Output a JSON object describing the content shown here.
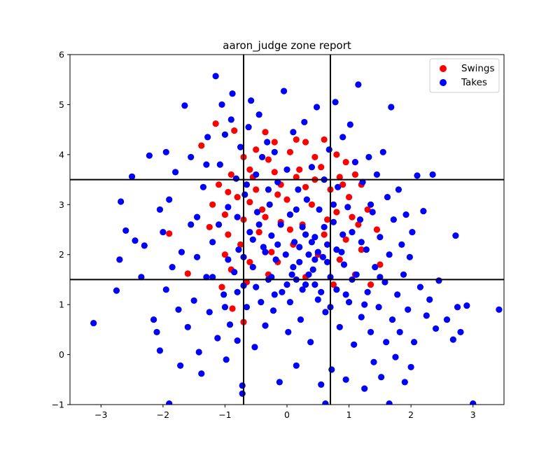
{
  "chart_data": {
    "type": "scatter",
    "title": "aaron_judge zone report",
    "xlabel": "",
    "ylabel": "",
    "xlim": [
      -3.5,
      3.5
    ],
    "ylim": [
      -1,
      6
    ],
    "x_ticks": [
      -3,
      -2,
      -1,
      0,
      1,
      2,
      3
    ],
    "y_ticks": [
      -1,
      0,
      1,
      2,
      3,
      4,
      5,
      6
    ],
    "grid": false,
    "legend_position": "top-right",
    "strike_zone": {
      "x_lines": [
        -0.7,
        0.7
      ],
      "y_lines": [
        1.5,
        3.5
      ]
    },
    "series": [
      {
        "name": "Swings",
        "color": "#ff0000",
        "points": [
          [
            -1.9,
            2.42
          ],
          [
            -1.6,
            1.62
          ],
          [
            -1.38,
            4.18
          ],
          [
            -1.15,
            4.62
          ],
          [
            -0.85,
            4.48
          ],
          [
            -0.35,
            4.45
          ],
          [
            -0.5,
            4.1
          ],
          [
            -0.2,
            4.25
          ],
          [
            0.15,
            4.3
          ],
          [
            0.3,
            4.25
          ],
          [
            0.6,
            4.3
          ],
          [
            0.8,
            4.0
          ],
          [
            -0.7,
            3.95
          ],
          [
            -0.3,
            3.9
          ],
          [
            0.05,
            4.05
          ],
          [
            0.45,
            3.95
          ],
          [
            0.95,
            3.85
          ],
          [
            1.1,
            3.6
          ],
          [
            1.2,
            3.4
          ],
          [
            -1.1,
            3.4
          ],
          [
            -0.9,
            3.6
          ],
          [
            -0.6,
            3.7
          ],
          [
            -0.2,
            3.65
          ],
          [
            0.2,
            3.7
          ],
          [
            0.55,
            3.75
          ],
          [
            0.85,
            3.55
          ],
          [
            -1.2,
            3.0
          ],
          [
            -1.0,
            2.8
          ],
          [
            -0.8,
            3.15
          ],
          [
            -0.5,
            3.3
          ],
          [
            -0.1,
            3.4
          ],
          [
            0.3,
            3.35
          ],
          [
            0.7,
            3.3
          ],
          [
            1.0,
            3.15
          ],
          [
            1.3,
            2.9
          ],
          [
            -1.25,
            2.55
          ],
          [
            -0.95,
            2.4
          ],
          [
            -0.7,
            2.7
          ],
          [
            -0.4,
            2.9
          ],
          [
            0.0,
            3.1
          ],
          [
            0.4,
            3.0
          ],
          [
            0.8,
            2.85
          ],
          [
            1.15,
            2.6
          ],
          [
            1.45,
            2.5
          ],
          [
            -1.0,
            2.0
          ],
          [
            -0.75,
            2.2
          ],
          [
            -0.45,
            2.45
          ],
          [
            -0.1,
            2.65
          ],
          [
            0.25,
            2.6
          ],
          [
            0.6,
            2.4
          ],
          [
            0.95,
            2.3
          ],
          [
            1.2,
            2.1
          ],
          [
            -0.9,
            1.7
          ],
          [
            -0.6,
            1.85
          ],
          [
            -0.25,
            2.05
          ],
          [
            0.1,
            2.2
          ],
          [
            0.5,
            2.0
          ],
          [
            0.85,
            1.9
          ],
          [
            1.1,
            1.6
          ],
          [
            1.5,
            1.8
          ],
          [
            -1.05,
            1.35
          ],
          [
            -0.65,
            1.45
          ],
          [
            -0.3,
            1.6
          ],
          [
            0.3,
            1.55
          ],
          [
            0.75,
            1.4
          ],
          [
            1.35,
            1.4
          ],
          [
            -0.88,
            0.92
          ],
          [
            -0.7,
            0.65
          ],
          [
            -0.55,
            3.55
          ],
          [
            -0.15,
            3.2
          ],
          [
            0.15,
            3.55
          ],
          [
            0.45,
            3.5
          ],
          [
            -0.35,
            2.75
          ],
          [
            0.05,
            2.5
          ],
          [
            -0.6,
            3.05
          ],
          [
            0.9,
            3.4
          ],
          [
            -0.95,
            3.25
          ],
          [
            0.65,
            2.7
          ],
          [
            1.05,
            2.75
          ],
          [
            -0.15,
            1.85
          ]
        ]
      },
      {
        "name": "Takes",
        "color": "#0000ff",
        "points": [
          [
            -3.12,
            0.63
          ],
          [
            -2.7,
            1.9
          ],
          [
            -2.68,
            3.06
          ],
          [
            -2.6,
            2.48
          ],
          [
            -2.45,
            2.28
          ],
          [
            -2.3,
            2.18
          ],
          [
            -2.22,
            3.98
          ],
          [
            -2.15,
            0.7
          ],
          [
            -2.1,
            0.45
          ],
          [
            -2.05,
            0.08
          ],
          [
            -2.0,
            2.45
          ],
          [
            -1.95,
            1.3
          ],
          [
            -1.9,
            3.1
          ],
          [
            -1.85,
            1.75
          ],
          [
            -1.8,
            3.65
          ],
          [
            -1.75,
            0.9
          ],
          [
            -1.7,
            2.05
          ],
          [
            -1.65,
            4.98
          ],
          [
            -1.6,
            0.55
          ],
          [
            -1.55,
            3.95
          ],
          [
            -1.5,
            1.08
          ],
          [
            -1.45,
            2.75
          ],
          [
            -1.42,
            0.05
          ],
          [
            -1.38,
            -0.38
          ],
          [
            -1.35,
            3.35
          ],
          [
            -1.3,
            1.55
          ],
          [
            -1.28,
            4.35
          ],
          [
            -1.25,
            0.85
          ],
          [
            -1.2,
            2.25
          ],
          [
            -1.15,
            5.57
          ],
          [
            -1.12,
            0.33
          ],
          [
            -1.08,
            3.8
          ],
          [
            -1.05,
            5.0
          ],
          [
            -1.02,
            1.2
          ],
          [
            -1.0,
            4.4
          ],
          [
            -0.98,
            -0.1
          ],
          [
            -0.95,
            2.95
          ],
          [
            -0.92,
            0.6
          ],
          [
            -0.9,
            4.7
          ],
          [
            -0.88,
            5.22
          ],
          [
            -0.85,
            1.65
          ],
          [
            -0.82,
            3.52
          ],
          [
            -0.8,
            0.28
          ],
          [
            -0.78,
            2.1
          ],
          [
            -0.75,
            4.15
          ],
          [
            -0.72,
            -0.62
          ],
          [
            -0.7,
            1.38
          ],
          [
            -0.68,
            3.2
          ],
          [
            -0.65,
            0.95
          ],
          [
            -0.62,
            4.55
          ],
          [
            -0.6,
            2.45
          ],
          [
            -0.58,
            5.08
          ],
          [
            -0.55,
            1.75
          ],
          [
            -0.52,
            0.15
          ],
          [
            -0.5,
            3.6
          ],
          [
            -0.48,
            2.85
          ],
          [
            -0.45,
            4.8
          ],
          [
            -0.42,
            1.05
          ],
          [
            -0.4,
            3.95
          ],
          [
            -0.38,
            2.15
          ],
          [
            -0.35,
            0.58
          ],
          [
            -0.32,
            4.25
          ],
          [
            -0.3,
            1.5
          ],
          [
            -0.28,
            3.0
          ],
          [
            -0.25,
            2.38
          ],
          [
            -0.22,
            0.88
          ],
          [
            -0.2,
            4.05
          ],
          [
            -0.18,
            1.9
          ],
          [
            -0.15,
            3.45
          ],
          [
            -0.12,
            -0.55
          ],
          [
            -0.1,
            2.6
          ],
          [
            -0.08,
            1.25
          ],
          [
            -0.05,
            5.27
          ],
          [
            -0.02,
            2.0
          ],
          [
            0.0,
            3.7
          ],
          [
            0.02,
            0.45
          ],
          [
            0.05,
            2.8
          ],
          [
            0.08,
            1.6
          ],
          [
            0.1,
            4.45
          ],
          [
            0.12,
            2.25
          ],
          [
            0.15,
            -0.22
          ],
          [
            0.18,
            3.3
          ],
          [
            0.2,
            1.85
          ],
          [
            0.22,
            0.7
          ],
          [
            0.25,
            2.55
          ],
          [
            0.28,
            4.65
          ],
          [
            0.3,
            1.4
          ],
          [
            0.32,
            3.1
          ],
          [
            0.35,
            2.0
          ],
          [
            0.38,
            0.25
          ],
          [
            0.4,
            3.75
          ],
          [
            0.42,
            1.7
          ],
          [
            0.45,
            2.35
          ],
          [
            0.48,
            4.95
          ],
          [
            0.5,
            1.1
          ],
          [
            0.52,
            2.9
          ],
          [
            0.55,
            -0.6
          ],
          [
            0.58,
            1.95
          ],
          [
            0.6,
            3.5
          ],
          [
            0.62,
            0.85
          ],
          [
            0.65,
            2.2
          ],
          [
            0.68,
            4.1
          ],
          [
            0.7,
            1.55
          ],
          [
            0.72,
            -0.3
          ],
          [
            0.75,
            2.65
          ],
          [
            0.78,
            5.05
          ],
          [
            0.8,
            1.3
          ],
          [
            0.82,
            3.35
          ],
          [
            0.85,
            0.55
          ],
          [
            0.88,
            2.05
          ],
          [
            0.9,
            4.35
          ],
          [
            0.92,
            1.8
          ],
          [
            0.95,
            -0.5
          ],
          [
            0.98,
            2.95
          ],
          [
            1.0,
            1.05
          ],
          [
            1.02,
            4.6
          ],
          [
            1.05,
            2.45
          ],
          [
            1.08,
            0.2
          ],
          [
            1.1,
            3.85
          ],
          [
            1.12,
            1.6
          ],
          [
            1.15,
            5.4
          ],
          [
            1.18,
            2.7
          ],
          [
            1.2,
            0.75
          ],
          [
            1.22,
            3.45
          ],
          [
            1.25,
            -0.68
          ],
          [
            1.28,
            2.1
          ],
          [
            1.3,
            1.25
          ],
          [
            1.32,
            3.95
          ],
          [
            1.35,
            0.45
          ],
          [
            1.38,
            2.85
          ],
          [
            1.4,
            -0.15
          ],
          [
            1.42,
            1.75
          ],
          [
            1.45,
            3.6
          ],
          [
            1.48,
            0.95
          ],
          [
            1.5,
            2.35
          ],
          [
            1.52,
            -0.45
          ],
          [
            1.55,
            4.05
          ],
          [
            1.58,
            1.45
          ],
          [
            1.6,
            0.25
          ],
          [
            1.62,
            3.15
          ],
          [
            1.65,
            2.0
          ],
          [
            1.68,
            4.95
          ],
          [
            1.7,
            0.7
          ],
          [
            1.72,
            2.7
          ],
          [
            1.75,
            -0.05
          ],
          [
            1.78,
            1.2
          ],
          [
            1.8,
            3.3
          ],
          [
            1.82,
            0.45
          ],
          [
            1.85,
            2.2
          ],
          [
            1.88,
            1.6
          ],
          [
            1.9,
            -0.55
          ],
          [
            1.92,
            2.8
          ],
          [
            1.95,
            0.9
          ],
          [
            1.98,
            1.95
          ],
          [
            2.0,
            -0.25
          ],
          [
            2.02,
            2.45
          ],
          [
            2.05,
            0.25
          ],
          [
            2.1,
            3.58
          ],
          [
            2.15,
            1.35
          ],
          [
            2.2,
            2.87
          ],
          [
            2.25,
            0.78
          ],
          [
            2.3,
            1.1
          ],
          [
            2.35,
            3.6
          ],
          [
            2.4,
            0.52
          ],
          [
            2.45,
            1.48
          ],
          [
            2.58,
            0.7
          ],
          [
            2.68,
            0.3
          ],
          [
            2.72,
            2.38
          ],
          [
            2.75,
            0.95
          ],
          [
            2.9,
            0.98
          ],
          [
            3.0,
            -0.98
          ],
          [
            3.42,
            0.9
          ],
          [
            -1.9,
            -0.98
          ],
          [
            -1.72,
            -0.22
          ],
          [
            -0.72,
            -0.78
          ],
          [
            0.62,
            -0.98
          ],
          [
            1.65,
            -0.98
          ],
          [
            2.8,
            0.45
          ],
          [
            -2.05,
            2.9
          ],
          [
            -1.55,
            2.6
          ],
          [
            -1.3,
            3.8
          ],
          [
            -1.1,
            2.6
          ],
          [
            -0.95,
            1.9
          ],
          [
            -0.8,
            2.75
          ],
          [
            -0.65,
            3.4
          ],
          [
            -0.45,
            2.6
          ],
          [
            -0.3,
            3.3
          ],
          [
            -0.15,
            2.2
          ],
          [
            0.0,
            1.4
          ],
          [
            0.15,
            2.9
          ],
          [
            0.3,
            2.4
          ],
          [
            0.45,
            1.9
          ],
          [
            0.6,
            2.55
          ],
          [
            0.75,
            3.0
          ],
          [
            0.9,
            2.4
          ],
          [
            1.05,
            1.5
          ],
          [
            1.2,
            2.25
          ],
          [
            1.35,
            3.0
          ],
          [
            1.5,
            1.55
          ],
          [
            -1.45,
            1.95
          ],
          [
            -1.2,
            1.55
          ],
          [
            -1.0,
            0.95
          ],
          [
            -0.8,
            1.25
          ],
          [
            -0.5,
            1.35
          ],
          [
            -0.2,
            1.2
          ],
          [
            0.05,
            1.05
          ],
          [
            0.25,
            1.3
          ],
          [
            0.55,
            1.25
          ],
          [
            0.7,
            0.95
          ],
          [
            0.95,
            1.2
          ],
          [
            1.25,
            1.0
          ],
          [
            -0.35,
            2.05
          ],
          [
            0.1,
            1.75
          ],
          [
            0.35,
            1.6
          ],
          [
            0.5,
            2.05
          ],
          [
            -0.55,
            2.3
          ],
          [
            -0.7,
            1.95
          ],
          [
            0.2,
            2.15
          ],
          [
            0.4,
            2.25
          ],
          [
            0.65,
            1.85
          ],
          [
            0.8,
            2.1
          ],
          [
            -0.25,
            1.55
          ],
          [
            0.15,
            1.5
          ],
          [
            0.45,
            1.4
          ],
          [
            -2.5,
            3.56
          ],
          [
            -1.95,
            4.05
          ],
          [
            -2.35,
            1.55
          ],
          [
            -2.75,
            1.28
          ]
        ]
      }
    ]
  }
}
